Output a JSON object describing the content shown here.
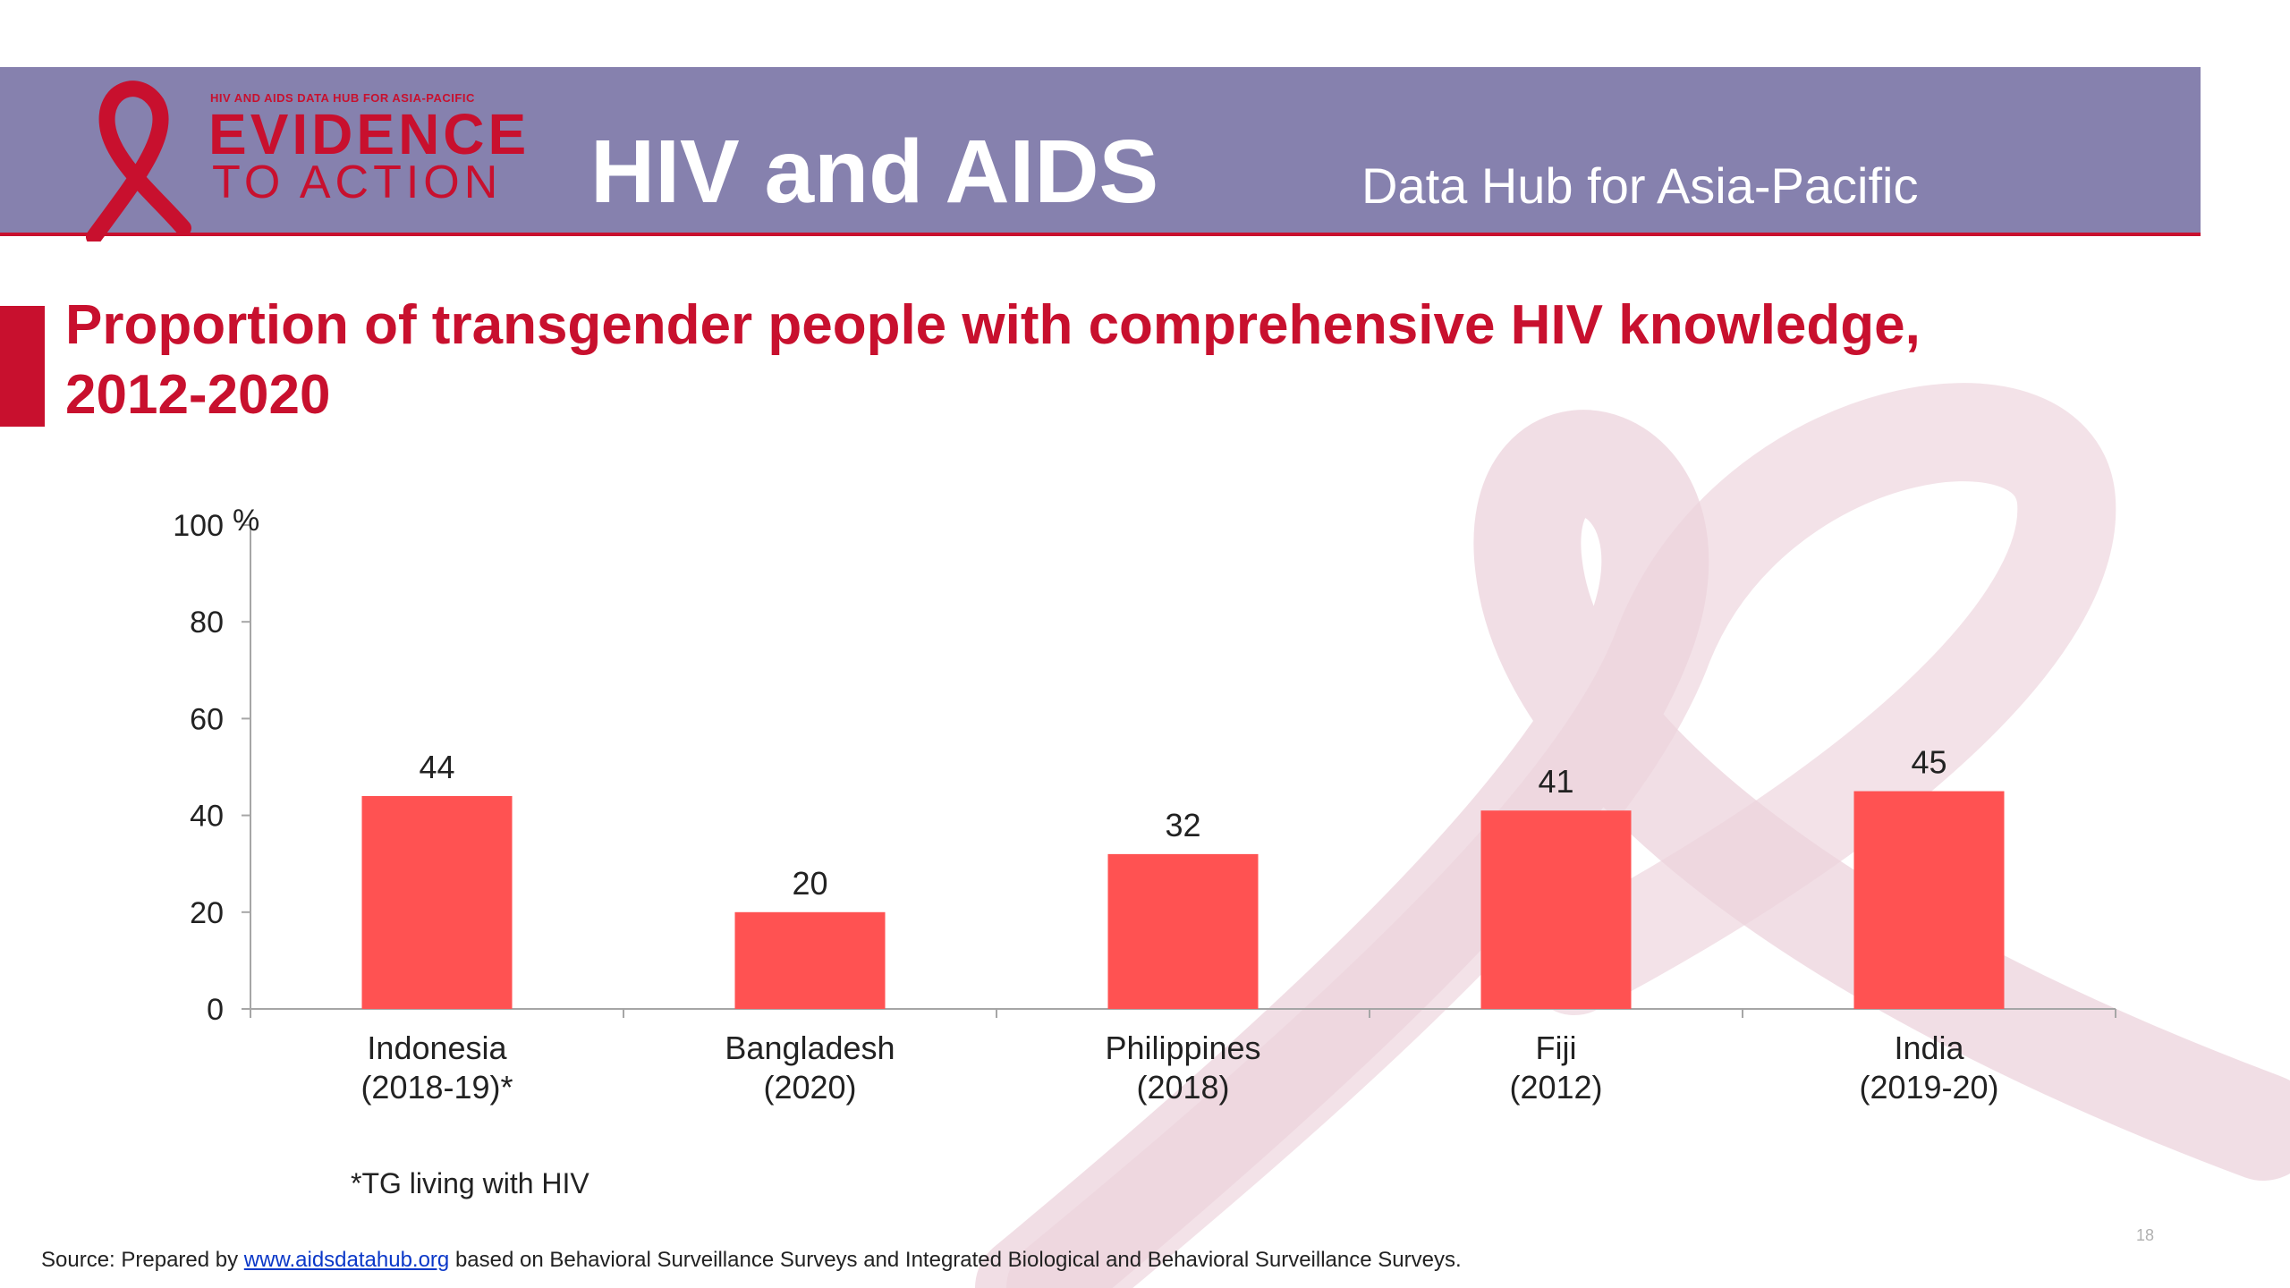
{
  "header": {
    "logo_tagline": "HIV AND AIDS DATA HUB FOR ASIA-PACIFIC",
    "logo_line1": "EVIDENCE",
    "logo_line2": "TO ACTION",
    "title": "HIV and AIDS",
    "subtitle": "Data Hub for Asia-Pacific"
  },
  "colors": {
    "header_band": "#8681ae",
    "brand_red": "#c8102e",
    "bar": "#ff5252",
    "ribbon": "#ecd3dc"
  },
  "footnote": "*TG living with HIV",
  "source": {
    "prefix": "Source: Prepared by ",
    "link_text": "www.aidsdatahub.org",
    "suffix": " based on Behavioral Surveillance Surveys and Integrated Biological and Behavioral Surveillance Surveys."
  },
  "page_number": "18",
  "chart_data": {
    "type": "bar",
    "title": "Proportion of transgender people with comprehensive HIV knowledge, 2012-2020",
    "ylabel": "%",
    "xlabel": "",
    "ylim": [
      0,
      100
    ],
    "yticks": [
      0,
      20,
      40,
      60,
      80,
      100
    ],
    "grid": false,
    "categories": [
      [
        "Indonesia",
        "(2018-19)*"
      ],
      [
        "Bangladesh",
        "(2020)"
      ],
      [
        "Philippines",
        "(2018)"
      ],
      [
        "Fiji",
        "(2012)"
      ],
      [
        "India",
        "(2019-20)"
      ]
    ],
    "values": [
      44,
      20,
      32,
      41,
      45
    ],
    "data_labels": [
      "44",
      "20",
      "32",
      "41",
      "45"
    ]
  }
}
